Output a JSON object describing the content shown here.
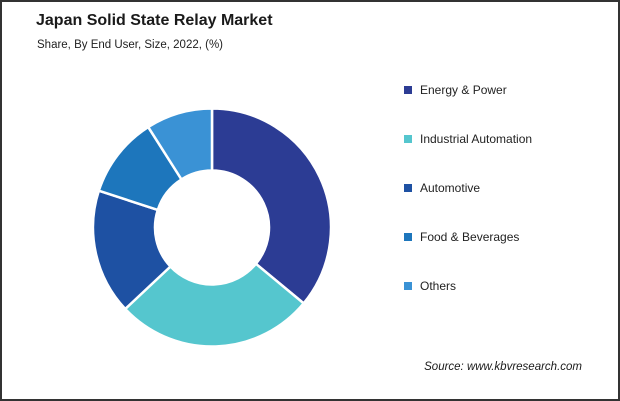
{
  "page": {
    "title": "Japan Solid State Relay Market",
    "subtitle": "Share, By End User, Size, 2022, (%)",
    "source": "Source: www.kbvresearch.com"
  },
  "chart_data": {
    "type": "pie",
    "subtype": "donut",
    "title": "Japan Solid State Relay Market",
    "subtitle": "Share, By End User, Size, 2022, (%)",
    "unit": "%",
    "year": "2022",
    "categories": [
      "Energy & Power",
      "Industrial Automation",
      "Automotive",
      "Food & Beverages",
      "Others"
    ],
    "values": [
      36,
      27,
      17,
      11,
      9
    ],
    "colors": [
      "#2c3c94",
      "#55c6ce",
      "#1e51a3",
      "#1d76bc",
      "#3a92d5"
    ],
    "start_angle_deg": 0,
    "direction": "clockwise",
    "inner_radius_ratio": 0.48,
    "legend_position": "right",
    "data_labels": false,
    "slice_separator_color": "#ffffff"
  }
}
